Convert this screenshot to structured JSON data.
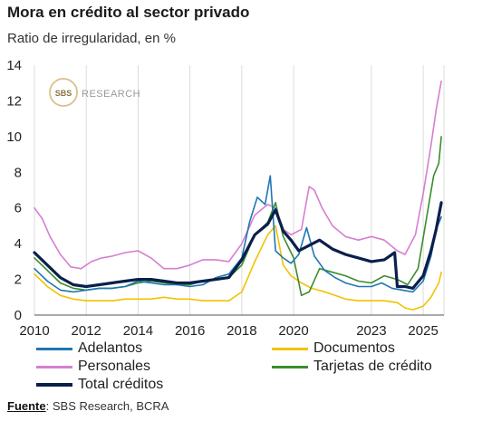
{
  "title": "Mora en crédito al sector privado",
  "subtitle": "Ratio de irregularidad, en %",
  "watermark": {
    "logo_text": "SBS",
    "text": "RESEARCH"
  },
  "source": {
    "label": "Fuente",
    "text": ": SBS Research, BCRA"
  },
  "chart_data": {
    "type": "line",
    "xlim": [
      2010,
      2025.8
    ],
    "ylim": [
      0,
      14
    ],
    "x_ticks": [
      2010,
      2012,
      2014,
      2016,
      2018,
      2020,
      2023,
      2025
    ],
    "x_tick_labels": [
      "2010",
      "2012",
      "2014",
      "2016",
      "2018",
      "2020",
      "2023",
      "2025"
    ],
    "y_ticks": [
      0,
      2,
      4,
      6,
      8,
      10,
      12,
      14
    ],
    "grid": "vertical",
    "legend": "bottom",
    "series": [
      {
        "name": "Adelantos",
        "color": "#1f77b4",
        "width": 1.6,
        "x": [
          2010,
          2010.5,
          2011,
          2011.5,
          2012,
          2012.5,
          2013,
          2013.5,
          2014,
          2014.5,
          2015,
          2015.5,
          2016,
          2016.5,
          2017,
          2017.5,
          2018,
          2018.3,
          2018.6,
          2018.9,
          2019.1,
          2019.3,
          2019.6,
          2019.9,
          2020.2,
          2020.5,
          2020.8,
          2021.2,
          2021.6,
          2022,
          2022.5,
          2023,
          2023.4,
          2023.8,
          2024.2,
          2024.6,
          2025,
          2025.3,
          2025.5,
          2025.7
        ],
        "y": [
          2.6,
          1.9,
          1.4,
          1.3,
          1.4,
          1.5,
          1.5,
          1.6,
          1.9,
          1.8,
          1.7,
          1.7,
          1.6,
          1.7,
          2.1,
          2.3,
          3.2,
          5.2,
          6.6,
          6.2,
          7.8,
          3.6,
          3.2,
          2.9,
          3.4,
          4.9,
          3.3,
          2.5,
          2.1,
          1.8,
          1.6,
          1.6,
          1.8,
          1.5,
          1.4,
          1.3,
          1.9,
          3.3,
          4.8,
          5.5
        ]
      },
      {
        "name": "Documentos",
        "color": "#f2c200",
        "width": 1.6,
        "x": [
          2010,
          2010.5,
          2011,
          2011.5,
          2012,
          2012.5,
          2013,
          2013.5,
          2014,
          2014.5,
          2015,
          2015.5,
          2016,
          2016.5,
          2017,
          2017.5,
          2018,
          2018.5,
          2019,
          2019.3,
          2019.6,
          2019.9,
          2020.3,
          2020.7,
          2021.2,
          2021.6,
          2022,
          2022.5,
          2023,
          2023.5,
          2024,
          2024.3,
          2024.6,
          2025,
          2025.3,
          2025.6,
          2025.7
        ],
        "y": [
          2.3,
          1.6,
          1.1,
          0.9,
          0.8,
          0.8,
          0.8,
          0.9,
          0.9,
          0.9,
          1.0,
          0.9,
          0.9,
          0.8,
          0.8,
          0.8,
          1.3,
          3.0,
          4.5,
          5.0,
          2.8,
          2.2,
          1.8,
          1.5,
          1.3,
          1.1,
          0.9,
          0.8,
          0.8,
          0.8,
          0.7,
          0.4,
          0.3,
          0.5,
          1.0,
          1.8,
          2.4
        ]
      },
      {
        "name": "Personales",
        "color": "#d67fd0",
        "width": 1.6,
        "x": [
          2010,
          2010.3,
          2010.6,
          2011,
          2011.4,
          2011.8,
          2012.2,
          2012.6,
          2013,
          2013.5,
          2014,
          2014.5,
          2015,
          2015.5,
          2016,
          2016.5,
          2017,
          2017.5,
          2018,
          2018.5,
          2019,
          2019.3,
          2019.6,
          2019.9,
          2020.3,
          2020.6,
          2020.8,
          2021.1,
          2021.5,
          2022,
          2022.5,
          2023,
          2023.5,
          2024,
          2024.3,
          2024.7,
          2025,
          2025.3,
          2025.5,
          2025.7
        ],
        "y": [
          6.0,
          5.4,
          4.4,
          3.4,
          2.7,
          2.6,
          3.0,
          3.2,
          3.3,
          3.5,
          3.6,
          3.2,
          2.6,
          2.6,
          2.8,
          3.1,
          3.1,
          3.0,
          4.0,
          5.6,
          6.2,
          6.0,
          4.8,
          4.5,
          4.8,
          7.2,
          7.0,
          6.0,
          5.0,
          4.4,
          4.2,
          4.4,
          4.2,
          3.6,
          3.4,
          4.5,
          6.8,
          9.5,
          11.5,
          13.1
        ]
      },
      {
        "name": "Tarjetas de crédito",
        "color": "#3c8c2e",
        "width": 1.6,
        "x": [
          2010,
          2010.5,
          2011,
          2011.5,
          2012,
          2012.5,
          2013,
          2013.5,
          2014,
          2014.5,
          2015,
          2015.5,
          2016,
          2016.5,
          2017,
          2017.5,
          2018,
          2018.5,
          2019,
          2019.3,
          2019.6,
          2020,
          2020.3,
          2020.6,
          2021,
          2021.5,
          2022,
          2022.5,
          2023,
          2023.5,
          2024,
          2024.4,
          2024.8,
          2025.1,
          2025.4,
          2025.6,
          2025.7
        ],
        "y": [
          3.2,
          2.5,
          1.8,
          1.5,
          1.4,
          1.5,
          1.5,
          1.6,
          1.8,
          1.9,
          1.8,
          1.7,
          1.7,
          1.9,
          2.0,
          2.1,
          2.8,
          4.5,
          5.2,
          6.3,
          4.4,
          3.2,
          1.1,
          1.3,
          2.6,
          2.4,
          2.2,
          1.9,
          1.8,
          2.2,
          2.0,
          1.7,
          2.6,
          5.2,
          7.8,
          8.5,
          10.0
        ]
      },
      {
        "name": "Total créditos",
        "color": "#0b1f4b",
        "width": 3.2,
        "x": [
          2010,
          2010.5,
          2011,
          2011.5,
          2012,
          2012.5,
          2013,
          2013.5,
          2014,
          2014.5,
          2015,
          2015.5,
          2016,
          2016.5,
          2017,
          2017.5,
          2018,
          2018.5,
          2019,
          2019.3,
          2019.6,
          2019.9,
          2020.2,
          2020.6,
          2021,
          2021.5,
          2022,
          2022.5,
          2023,
          2023.5,
          2023.9,
          2024.0,
          2024.3,
          2024.6,
          2025,
          2025.3,
          2025.5,
          2025.7
        ],
        "y": [
          3.5,
          2.8,
          2.1,
          1.7,
          1.6,
          1.7,
          1.8,
          1.9,
          2.0,
          2.0,
          1.9,
          1.8,
          1.8,
          1.9,
          2.0,
          2.1,
          3.1,
          4.5,
          5.1,
          5.9,
          4.7,
          4.2,
          3.6,
          3.9,
          4.2,
          3.7,
          3.4,
          3.2,
          3.0,
          3.1,
          3.5,
          1.6,
          1.6,
          1.5,
          2.2,
          3.6,
          4.8,
          6.3
        ]
      }
    ]
  }
}
